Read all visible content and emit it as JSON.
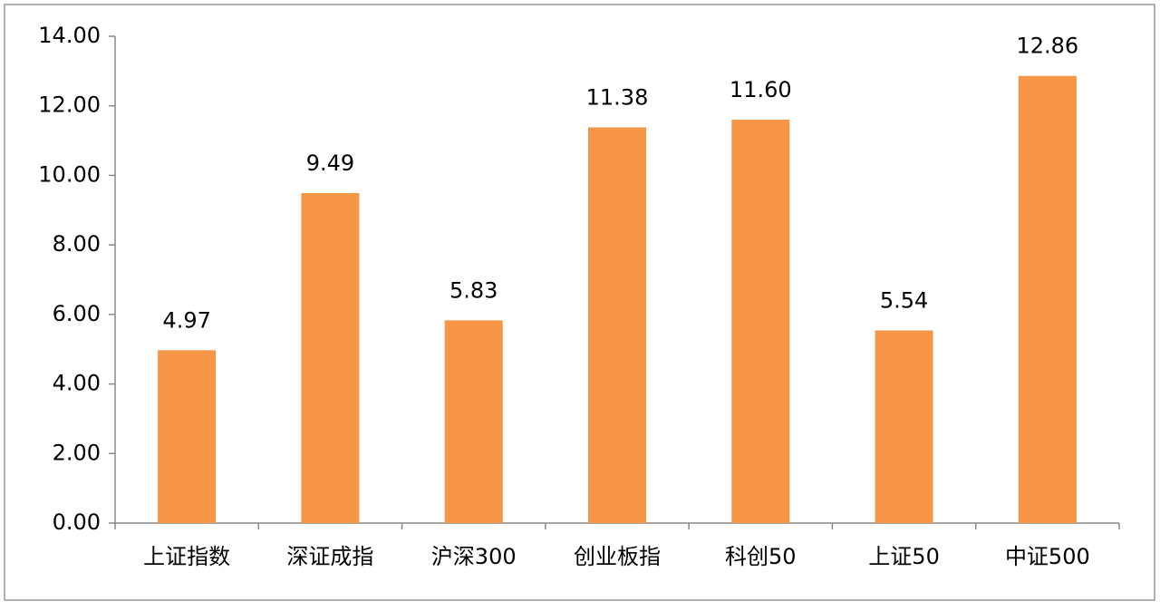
{
  "chart_data": {
    "type": "bar",
    "categories": [
      "上证指数",
      "深证成指",
      "沪深300",
      "创业板指",
      "科创50",
      "上证50",
      "中证500"
    ],
    "values": [
      4.97,
      9.49,
      5.83,
      11.38,
      11.6,
      5.54,
      12.86
    ],
    "value_labels": [
      "4.97",
      "9.49",
      "5.83",
      "11.38",
      "11.60",
      "5.54",
      "12.86"
    ],
    "color": "#f79646",
    "ylim": [
      0,
      14
    ],
    "yticks": [
      {
        "value": 0,
        "label": "0.00"
      },
      {
        "value": 2,
        "label": "2.00"
      },
      {
        "value": 4,
        "label": "4.00"
      },
      {
        "value": 6,
        "label": "6.00"
      },
      {
        "value": 8,
        "label": "8.00"
      },
      {
        "value": 10,
        "label": "10.00"
      },
      {
        "value": 12,
        "label": "12.00"
      },
      {
        "value": 14,
        "label": "14.00"
      }
    ],
    "grid": false
  }
}
